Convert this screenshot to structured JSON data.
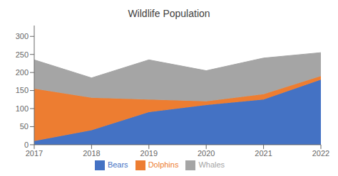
{
  "chart_data": {
    "type": "area",
    "title": "Wildlife Population",
    "stacked": true,
    "x": [
      2017,
      2018,
      2019,
      2020,
      2021,
      2022
    ],
    "series": [
      {
        "name": "Bears",
        "color": "#4472C4",
        "values": [
          10,
          40,
          90,
          110,
          125,
          180
        ]
      },
      {
        "name": "Dolphins",
        "color": "#ED7D31",
        "values": [
          145,
          90,
          35,
          10,
          15,
          10
        ]
      },
      {
        "name": "Whales",
        "color": "#A5A5A5",
        "values": [
          80,
          55,
          110,
          85,
          100,
          65
        ]
      }
    ],
    "xlim": [
      2017,
      2022
    ],
    "xticks": [
      2017,
      2018,
      2019,
      2020,
      2021,
      2022
    ],
    "ylim": [
      0,
      330
    ],
    "yticks": [
      0,
      50,
      100,
      150,
      200,
      250,
      300
    ],
    "grid": false,
    "legend": "bottom"
  }
}
